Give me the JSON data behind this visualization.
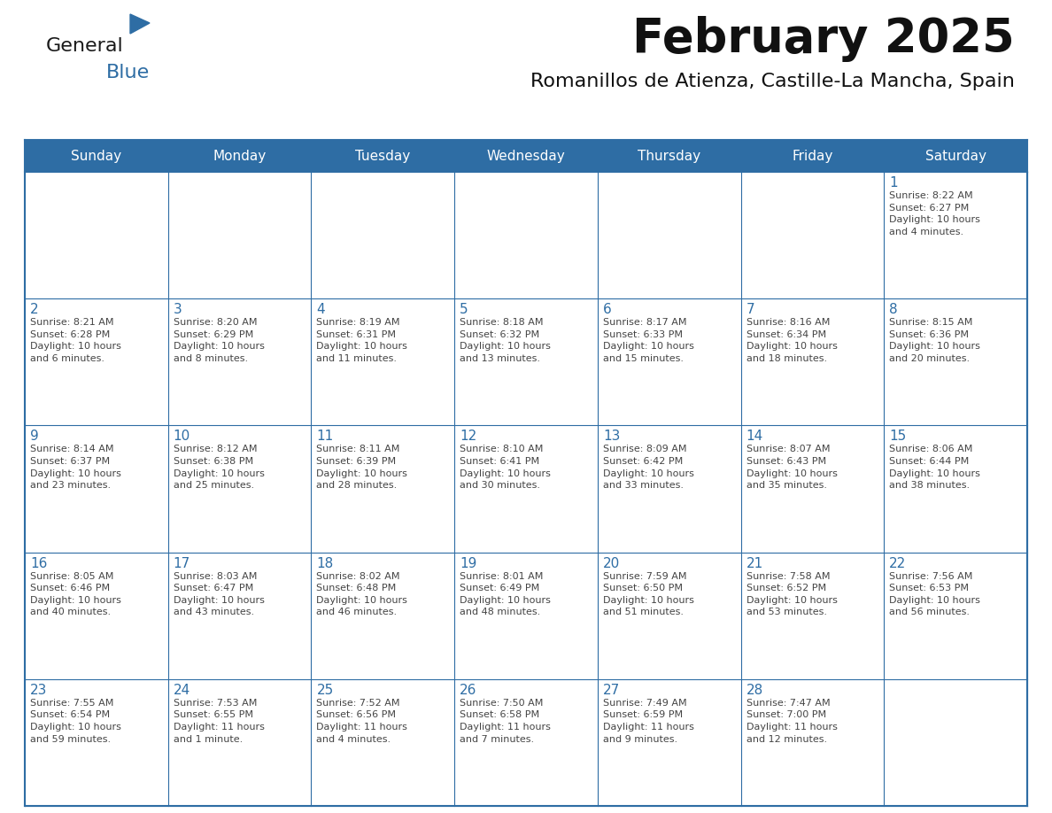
{
  "title": "February 2025",
  "subtitle": "Romanillos de Atienza, Castille-La Mancha, Spain",
  "header_bg_color": "#2E6DA4",
  "header_text_color": "#FFFFFF",
  "cell_bg_color": "#FFFFFF",
  "day_number_color": "#2E6DA4",
  "text_color": "#444444",
  "border_color": "#2E6DA4",
  "days_of_week": [
    "Sunday",
    "Monday",
    "Tuesday",
    "Wednesday",
    "Thursday",
    "Friday",
    "Saturday"
  ],
  "weeks": [
    [
      {
        "day": 0,
        "info": ""
      },
      {
        "day": 0,
        "info": ""
      },
      {
        "day": 0,
        "info": ""
      },
      {
        "day": 0,
        "info": ""
      },
      {
        "day": 0,
        "info": ""
      },
      {
        "day": 0,
        "info": ""
      },
      {
        "day": 1,
        "info": "Sunrise: 8:22 AM\nSunset: 6:27 PM\nDaylight: 10 hours\nand 4 minutes."
      }
    ],
    [
      {
        "day": 2,
        "info": "Sunrise: 8:21 AM\nSunset: 6:28 PM\nDaylight: 10 hours\nand 6 minutes."
      },
      {
        "day": 3,
        "info": "Sunrise: 8:20 AM\nSunset: 6:29 PM\nDaylight: 10 hours\nand 8 minutes."
      },
      {
        "day": 4,
        "info": "Sunrise: 8:19 AM\nSunset: 6:31 PM\nDaylight: 10 hours\nand 11 minutes."
      },
      {
        "day": 5,
        "info": "Sunrise: 8:18 AM\nSunset: 6:32 PM\nDaylight: 10 hours\nand 13 minutes."
      },
      {
        "day": 6,
        "info": "Sunrise: 8:17 AM\nSunset: 6:33 PM\nDaylight: 10 hours\nand 15 minutes."
      },
      {
        "day": 7,
        "info": "Sunrise: 8:16 AM\nSunset: 6:34 PM\nDaylight: 10 hours\nand 18 minutes."
      },
      {
        "day": 8,
        "info": "Sunrise: 8:15 AM\nSunset: 6:36 PM\nDaylight: 10 hours\nand 20 minutes."
      }
    ],
    [
      {
        "day": 9,
        "info": "Sunrise: 8:14 AM\nSunset: 6:37 PM\nDaylight: 10 hours\nand 23 minutes."
      },
      {
        "day": 10,
        "info": "Sunrise: 8:12 AM\nSunset: 6:38 PM\nDaylight: 10 hours\nand 25 minutes."
      },
      {
        "day": 11,
        "info": "Sunrise: 8:11 AM\nSunset: 6:39 PM\nDaylight: 10 hours\nand 28 minutes."
      },
      {
        "day": 12,
        "info": "Sunrise: 8:10 AM\nSunset: 6:41 PM\nDaylight: 10 hours\nand 30 minutes."
      },
      {
        "day": 13,
        "info": "Sunrise: 8:09 AM\nSunset: 6:42 PM\nDaylight: 10 hours\nand 33 minutes."
      },
      {
        "day": 14,
        "info": "Sunrise: 8:07 AM\nSunset: 6:43 PM\nDaylight: 10 hours\nand 35 minutes."
      },
      {
        "day": 15,
        "info": "Sunrise: 8:06 AM\nSunset: 6:44 PM\nDaylight: 10 hours\nand 38 minutes."
      }
    ],
    [
      {
        "day": 16,
        "info": "Sunrise: 8:05 AM\nSunset: 6:46 PM\nDaylight: 10 hours\nand 40 minutes."
      },
      {
        "day": 17,
        "info": "Sunrise: 8:03 AM\nSunset: 6:47 PM\nDaylight: 10 hours\nand 43 minutes."
      },
      {
        "day": 18,
        "info": "Sunrise: 8:02 AM\nSunset: 6:48 PM\nDaylight: 10 hours\nand 46 minutes."
      },
      {
        "day": 19,
        "info": "Sunrise: 8:01 AM\nSunset: 6:49 PM\nDaylight: 10 hours\nand 48 minutes."
      },
      {
        "day": 20,
        "info": "Sunrise: 7:59 AM\nSunset: 6:50 PM\nDaylight: 10 hours\nand 51 minutes."
      },
      {
        "day": 21,
        "info": "Sunrise: 7:58 AM\nSunset: 6:52 PM\nDaylight: 10 hours\nand 53 minutes."
      },
      {
        "day": 22,
        "info": "Sunrise: 7:56 AM\nSunset: 6:53 PM\nDaylight: 10 hours\nand 56 minutes."
      }
    ],
    [
      {
        "day": 23,
        "info": "Sunrise: 7:55 AM\nSunset: 6:54 PM\nDaylight: 10 hours\nand 59 minutes."
      },
      {
        "day": 24,
        "info": "Sunrise: 7:53 AM\nSunset: 6:55 PM\nDaylight: 11 hours\nand 1 minute."
      },
      {
        "day": 25,
        "info": "Sunrise: 7:52 AM\nSunset: 6:56 PM\nDaylight: 11 hours\nand 4 minutes."
      },
      {
        "day": 26,
        "info": "Sunrise: 7:50 AM\nSunset: 6:58 PM\nDaylight: 11 hours\nand 7 minutes."
      },
      {
        "day": 27,
        "info": "Sunrise: 7:49 AM\nSunset: 6:59 PM\nDaylight: 11 hours\nand 9 minutes."
      },
      {
        "day": 28,
        "info": "Sunrise: 7:47 AM\nSunset: 7:00 PM\nDaylight: 11 hours\nand 12 minutes."
      },
      {
        "day": 0,
        "info": ""
      }
    ]
  ],
  "logo_text1": "General",
  "logo_text2": "Blue",
  "logo_color1": "#1a1a1a",
  "logo_color2": "#2E6DA4",
  "logo_triangle_color": "#2E6DA4",
  "title_fontsize": 38,
  "subtitle_fontsize": 16,
  "header_fontsize": 11,
  "day_num_fontsize": 11,
  "info_fontsize": 8
}
